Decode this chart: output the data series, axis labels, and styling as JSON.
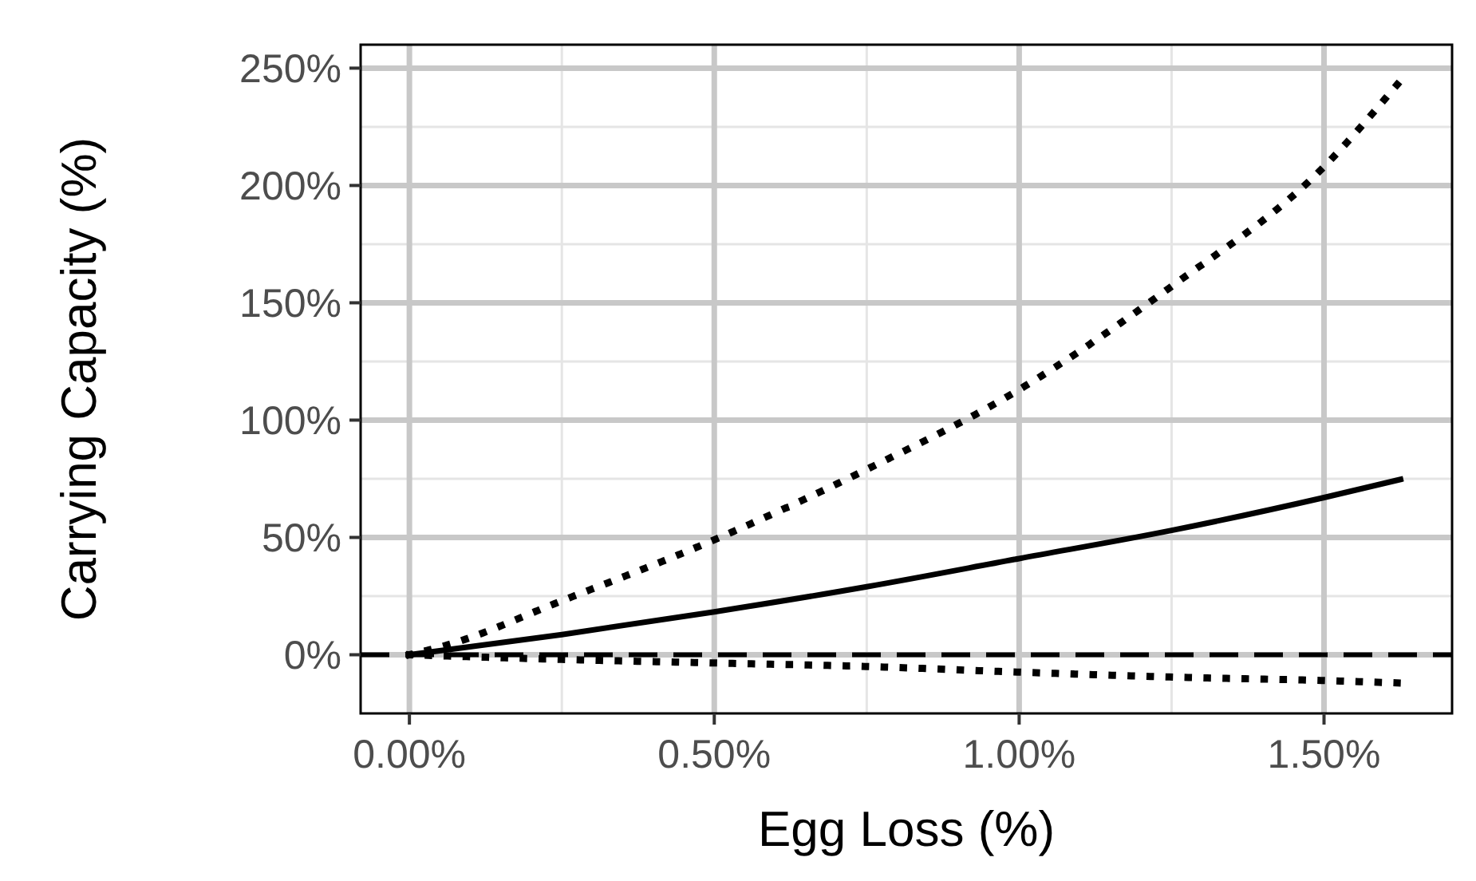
{
  "chart_data": {
    "type": "line",
    "xlabel": "Egg Loss (%)",
    "ylabel": "Carrying Capacity (%)",
    "xlim": [
      -0.08,
      1.71
    ],
    "ylim": [
      -25,
      260
    ],
    "xticks": [
      {
        "value": 0,
        "label": "0.00%"
      },
      {
        "value": 0.5,
        "label": "0.50%"
      },
      {
        "value": 1,
        "label": "1.00%"
      },
      {
        "value": 1.5,
        "label": "1.50%"
      }
    ],
    "yticks": [
      {
        "value": 0,
        "label": "0%"
      },
      {
        "value": 50,
        "label": "50%"
      },
      {
        "value": 100,
        "label": "100%"
      },
      {
        "value": 150,
        "label": "150%"
      },
      {
        "value": 200,
        "label": "200%"
      },
      {
        "value": 250,
        "label": "250%"
      }
    ],
    "grid": true,
    "ref_lines": [
      {
        "axis": "y",
        "value": 0,
        "color": "#000000",
        "line_style": "dashed"
      }
    ],
    "series": [
      {
        "color": "#000000",
        "line_style": "solid",
        "x": [
          0,
          0.25,
          0.5,
          0.75,
          1,
          1.25,
          1.5,
          1.63
        ],
        "values": [
          0,
          8.6,
          18.3,
          29,
          41,
          53,
          67,
          75
        ]
      },
      {
        "color": "#000000",
        "line_style": "dotted",
        "x": [
          0,
          0.06,
          0.25,
          0.5,
          0.75,
          1,
          1.25,
          1.5,
          1.62
        ],
        "values": [
          0,
          4,
          23,
          49,
          79,
          113,
          157,
          208,
          243
        ]
      },
      {
        "color": "#000000",
        "line_style": "dotted",
        "x": [
          0,
          0.25,
          0.5,
          0.75,
          1,
          1.25,
          1.5,
          1.62
        ],
        "values": [
          0,
          -2,
          -3.5,
          -5,
          -7.4,
          -9.5,
          -11,
          -12
        ]
      }
    ]
  }
}
